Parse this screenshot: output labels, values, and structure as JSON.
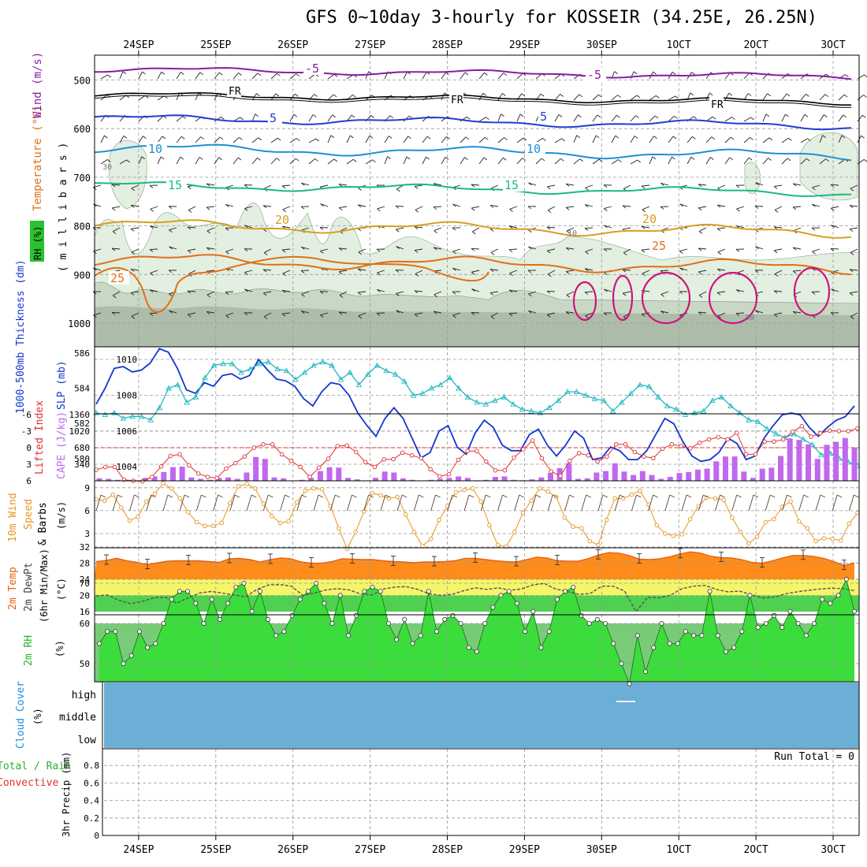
{
  "title": "GFS 0~10day 3-hourly for KOSSEIR (34.25E, 26.25N)",
  "colors": {
    "frame": "#000000",
    "grid": "#999999",
    "temp_purple": "#8a1aa8",
    "temp_black": "#000000",
    "temp_blue": "#1f3fd0",
    "temp_cyan": "#1e90d8",
    "temp_green": "#1ab88c",
    "temp_gold": "#d6a020",
    "temp_orange": "#e07018",
    "hot_magenta": "#d0147a",
    "rh_light": "#e3efe0",
    "rh_mid": "#c8d8c4",
    "rh_dark": "#aebdaa",
    "slp": "#1436d0",
    "thickness": "#20b8c0",
    "lifted": "#e03030",
    "cape": "#c068f0",
    "wind10": "#e6961e",
    "temp2m_fill": "#ff8c1a",
    "temp2m_top": "#e86010",
    "dew_fill_yellow": "#f5f56a",
    "dew_fill_green": "#50d050",
    "rh_green": "#3cdc3c",
    "rh_base": "#78cc78",
    "cloud": "#6baed6",
    "precip_green": "#28b428",
    "precip_red": "#e03030"
  },
  "x_axis": {
    "date_labels": [
      "24SEP",
      "25SEP",
      "26SEP",
      "27SEP",
      "28SEP",
      "29SEP",
      "30SEP",
      "1OCT",
      "2OCT",
      "3OCT"
    ]
  },
  "panels": {
    "upper_air": {
      "ylabel_rh": "RH (%)",
      "ylabel_temp": "Temperature (°C)",
      "ylabel_wind": "Wind (m/s)",
      "ylabel_pressure": "( m i l l i b a r s )",
      "pressure_ticks": [
        "500",
        "600",
        "700",
        "800",
        "900",
        "1000"
      ],
      "contour_labels": {
        "minus5": "-5",
        "fr": "FR",
        "plus5": "5",
        "plus10": "10",
        "plus15": "15",
        "plus20": "20",
        "plus25": "25",
        "rh30": "30",
        "rh10": "10"
      }
    },
    "slp": {
      "ylabel_thickness": "1000-500mb Thickness (dm)",
      "ylabel_slp": "SLP (mb)",
      "thickness_ticks": [
        "586",
        "584",
        "582",
        "580"
      ],
      "slp_ticks": [
        "1010",
        "1008",
        "1006",
        "1004"
      ]
    },
    "cape": {
      "ylabel_li": "Lifted Index",
      "ylabel_cape": "CAPE (J/kg)",
      "li_ticks": [
        "-6",
        "-3",
        "0",
        "3",
        "6"
      ],
      "cape_ticks": [
        "1360",
        "1020",
        "680",
        "340"
      ]
    },
    "wind10m": {
      "ylabel_a": "10m Wind",
      "ylabel_b": "Speed",
      "ylabel_c": "& Barbs",
      "ylabel_unit": "(m/s)",
      "ticks": [
        "9",
        "6",
        "3"
      ]
    },
    "temp2m": {
      "ylabel_a": "2m Temp",
      "ylabel_b": "2m DewPt",
      "ylabel_c": "(6hr Min/Max)",
      "ylabel_unit": "(°C)",
      "ticks": [
        "32",
        "28",
        "24",
        "20",
        "16"
      ]
    },
    "rh2m": {
      "ylabel": "2m RH",
      "ylabel_unit": "(%)",
      "ticks": [
        "70",
        "60",
        "50"
      ]
    },
    "cloud": {
      "ylabel": "Cloud Cover",
      "ylabel_unit": "(%)",
      "levels": [
        "high",
        "middle",
        "low"
      ]
    },
    "precip": {
      "ylabel_a": "Total / Rain",
      "ylabel_b": "Convective",
      "ylabel_c": "3hr Precip (mm)",
      "ticks": [
        "0.8",
        "0.6",
        "0.4",
        "0.2",
        "0"
      ],
      "run_total": "Run Total = 0"
    }
  },
  "chart_data": [
    {
      "type": "line",
      "name": "slp_thickness",
      "slp": [
        1007.5,
        1008.4,
        1009.5,
        1009.6,
        1009.3,
        1009.4,
        1009.8,
        1010.6,
        1010.4,
        1009.5,
        1008.3,
        1008.1,
        1008.7,
        1008.5,
        1009.1,
        1009.2,
        1008.9,
        1009.1,
        1010.0,
        1009.4,
        1008.9,
        1008.8,
        1008.5,
        1007.8,
        1007.4,
        1008.2,
        1008.7,
        1008.6,
        1008.0,
        1007.0,
        1006.3,
        1005.7,
        1006.7,
        1007.3,
        1006.7,
        1005.6,
        1004.5,
        1004.8,
        1006.0,
        1006.3,
        1005.1,
        1004.7,
        1005.9,
        1006.6,
        1006.2,
        1005.2,
        1004.9,
        1004.9,
        1005.8,
        1006.1,
        1005.2,
        1004.6,
        1005.2,
        1006.0,
        1005.6,
        1004.4,
        1004.5,
        1005.1,
        1004.9,
        1004.4,
        1004.4,
        1004.9,
        1005.8,
        1006.7,
        1006.4,
        1005.4,
        1004.6,
        1004.3,
        1004.4,
        1004.8,
        1005.6,
        1005.3,
        1004.4,
        1004.6,
        1005.6,
        1006.3,
        1006.9,
        1007.0,
        1006.9,
        1006.2,
        1005.7,
        1006.2,
        1006.6,
        1006.8,
        1007.4
      ],
      "thickness": [
        582.6,
        582.5,
        582.6,
        582.3,
        582.4,
        582.4,
        582.2,
        582.9,
        584.0,
        584.2,
        583.2,
        583.5,
        584.6,
        585.3,
        585.4,
        585.4,
        584.9,
        585.1,
        585.4,
        585.5,
        585.1,
        585.0,
        584.5,
        584.9,
        585.3,
        585.5,
        585.3,
        584.5,
        584.9,
        584.2,
        584.8,
        585.3,
        585.0,
        584.8,
        584.4,
        583.6,
        583.7,
        584.0,
        584.2,
        584.6,
        584.0,
        583.5,
        583.2,
        583.1,
        583.3,
        583.5,
        583.1,
        582.8,
        582.7,
        582.6,
        582.9,
        583.3,
        583.8,
        583.8,
        583.6,
        583.4,
        583.3,
        582.7,
        583.2,
        583.7,
        584.2,
        584.1,
        583.5,
        583.0,
        582.8,
        582.5,
        582.6,
        582.7,
        583.3,
        583.5,
        583.0,
        582.6,
        582.2,
        582.1,
        581.7,
        581.4,
        581.2,
        581.4,
        581.1,
        580.8,
        580.2,
        580.3,
        580.0,
        579.8,
        579.6
      ]
    },
    {
      "type": "bar",
      "name": "cape_lifted_index",
      "cape": [
        50,
        40,
        20,
        10,
        0,
        60,
        90,
        180,
        280,
        290,
        70,
        40,
        20,
        60,
        70,
        40,
        170,
        490,
        450,
        70,
        50,
        0,
        20,
        60,
        200,
        280,
        270,
        60,
        30,
        0,
        60,
        190,
        170,
        50,
        20,
        0,
        20,
        40,
        60,
        90,
        60,
        10,
        20,
        80,
        90,
        20,
        10,
        30,
        70,
        160,
        260,
        360,
        40,
        50,
        170,
        200,
        360,
        190,
        120,
        200,
        120,
        40,
        80,
        160,
        180,
        230,
        250,
        400,
        500,
        500,
        190,
        60,
        250,
        270,
        510,
        870,
        840,
        750,
        450,
        740,
        800,
        880,
        680
      ],
      "lifted_index": [
        4.0,
        3.5,
        3.5,
        5.8,
        6.0,
        6.1,
        5.3,
        3.4,
        1.5,
        1.2,
        3.2,
        4.7,
        5.3,
        5.5,
        3.8,
        2.8,
        1.6,
        0.0,
        -0.6,
        -0.6,
        1.2,
        2.4,
        3.5,
        5.3,
        3.6,
        2.0,
        -0.3,
        -0.4,
        0.8,
        2.6,
        3.5,
        2.1,
        2.1,
        0.9,
        1.4,
        1.9,
        3.9,
        5.2,
        4.8,
        2.2,
        0.6,
        0.6,
        2.5,
        4.1,
        4.1,
        1.8,
        0.3,
        -1.3,
        1.9,
        4.3,
        5.1,
        2.4,
        1.0,
        1.4,
        2.5,
        1.6,
        -0.6,
        -0.6,
        0.8,
        1.6,
        1.9,
        0.2,
        -0.6,
        -0.3,
        0.1,
        -0.9,
        -1.5,
        -1.9,
        -1.5,
        -2.7,
        1.2,
        1.2,
        -1.1,
        -1.1,
        -1.5,
        -2.9,
        -3.9,
        -2.0,
        -2.6,
        -3.1,
        -3.0,
        -3.0,
        -3.5
      ]
    },
    {
      "type": "line",
      "name": "wind10m_speed",
      "speed": [
        7.5,
        7.3,
        8.1,
        6.4,
        4.7,
        5.2,
        7.2,
        8.2,
        9.6,
        8.9,
        7.6,
        5.8,
        4.5,
        4.0,
        4.0,
        4.4,
        7.0,
        9.2,
        9.5,
        8.9,
        6.9,
        5.3,
        4.4,
        4.6,
        7.1,
        8.6,
        8.9,
        8.8,
        6.6,
        3.7,
        1.0,
        3.2,
        5.9,
        8.3,
        8.0,
        7.6,
        7.8,
        5.5,
        3.2,
        1.4,
        2.3,
        4.8,
        6.6,
        8.4,
        8.7,
        8.9,
        7.2,
        4.1,
        1.5,
        1.3,
        3.2,
        5.7,
        7.3,
        8.9,
        8.5,
        7.8,
        5.1,
        3.9,
        3.7,
        2.0,
        1.5,
        4.8,
        7.6,
        7.6,
        8.1,
        8.6,
        6.8,
        4.1,
        3.0,
        2.7,
        2.9,
        4.9,
        6.6,
        7.7,
        7.6,
        7.4,
        5.1,
        3.2,
        1.7,
        2.6,
        4.5,
        4.9,
        6.5,
        7.2,
        4.6,
        3.7,
        2.0,
        2.4,
        2.3,
        2.1,
        4.3,
        5.7
      ]
    },
    {
      "type": "area",
      "name": "temp2m_dewpoint",
      "temp": [
        28.4,
        28.7,
        29.2,
        28.6,
        28.2,
        27.6,
        28.1,
        28.5,
        28.6,
        28.6,
        28.6,
        28.4,
        28.2,
        29.1,
        29.2,
        28.9,
        28.3,
        28.9,
        29.3,
        29.1,
        28.3,
        28.0,
        28.0,
        28.4,
        29.1,
        29.0,
        28.9,
        28.9,
        28.6,
        28.4,
        28.3,
        28.1,
        28.3,
        28.3,
        28.4,
        28.6,
        29.2,
        29.2,
        28.9,
        28.6,
        28.4,
        28.3,
        28.9,
        29.5,
        29.3,
        28.6,
        28.5,
        28.5,
        29.1,
        30.0,
        30.6,
        30.5,
        29.9,
        29.0,
        28.9,
        29.1,
        29.6,
        30.3,
        30.8,
        30.5,
        29.7,
        29.4,
        29.3,
        28.9,
        28.2,
        28.0,
        28.6,
        29.3,
        29.9,
        29.9,
        29.7,
        29.2,
        28.4,
        27.4,
        28.1
      ],
      "dewpoint": [
        19.9,
        20.1,
        18.8,
        18.0,
        18.5,
        19.4,
        19.6,
        18.1,
        19.4,
        20.6,
        21.0,
        20.6,
        20.1,
        19.7,
        21.5,
        22.6,
        22.7,
        22.3,
        20.0,
        20.6,
        21.4,
        21.7,
        21.4,
        20.4,
        20.1,
        21.6,
        22.1,
        22.2,
        21.5,
        20.4,
        20.0,
        20.3,
        21.2,
        21.9,
        21.5,
        21.9,
        21.3,
        21.6,
        22.6,
        23.0,
        21.6,
        21.0,
        20.3,
        20.5,
        22.3,
        22.3,
        21.1,
        16.0,
        19.6,
        19.4,
        20.1,
        21.7,
        22.3,
        22.5,
        21.5,
        20.9,
        21.1,
        20.2,
        19.4,
        19.6,
        20.4,
        20.9,
        21.3,
        21.6,
        21.8,
        21.7,
        21.2
      ]
    },
    {
      "type": "area",
      "name": "rh2m",
      "rh": [
        55,
        58,
        58,
        50,
        52,
        58,
        54,
        55,
        60,
        66,
        68,
        68,
        65,
        60,
        66,
        61,
        65,
        69,
        70,
        63,
        68,
        61,
        57,
        58,
        62,
        66,
        68,
        70,
        65,
        60,
        67,
        57,
        62,
        68,
        69,
        68,
        60,
        56,
        61,
        55,
        57,
        68,
        58,
        61,
        62,
        60,
        54,
        53,
        60,
        64,
        67,
        68,
        65,
        58,
        63,
        54,
        58,
        66,
        68,
        69,
        62,
        60,
        61,
        60,
        55,
        50,
        45,
        57,
        48,
        54,
        60,
        55,
        55,
        58,
        57,
        57,
        68,
        57,
        53,
        54,
        58,
        67,
        59,
        60,
        62,
        59,
        63,
        60,
        57,
        60,
        66,
        65,
        67,
        71,
        63
      ]
    },
    {
      "type": "line",
      "name": "precip_3hr",
      "total": [],
      "convective": [],
      "ylim": [
        0,
        0.9
      ]
    }
  ]
}
